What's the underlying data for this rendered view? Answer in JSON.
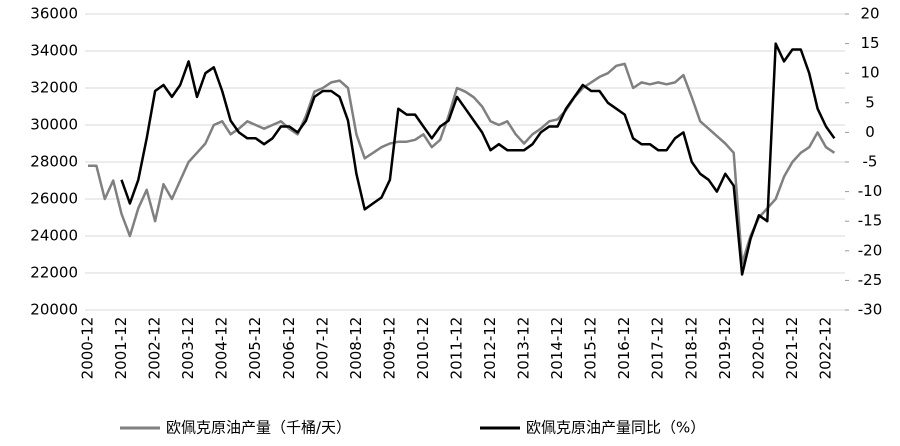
{
  "chart_data": {
    "type": "line",
    "categories": [
      "2000-12",
      null,
      null,
      null,
      "2001-12",
      null,
      null,
      null,
      "2002-12",
      null,
      null,
      null,
      "2003-12",
      null,
      null,
      null,
      "2004-12",
      null,
      null,
      null,
      "2005-12",
      null,
      null,
      null,
      "2006-12",
      null,
      null,
      null,
      "2007-12",
      null,
      null,
      null,
      "2008-12",
      null,
      null,
      null,
      "2009-12",
      null,
      null,
      null,
      "2010-12",
      null,
      null,
      null,
      "2011-12",
      null,
      null,
      null,
      "2012-12",
      null,
      null,
      null,
      "2013-12",
      null,
      null,
      null,
      "2014-12",
      null,
      null,
      null,
      "2015-12",
      null,
      null,
      null,
      "2016-12",
      null,
      null,
      null,
      "2017-12",
      null,
      null,
      null,
      "2018-12",
      null,
      null,
      null,
      "2019-12",
      null,
      null,
      null,
      "2020-12",
      null,
      null,
      null,
      "2021-12",
      null,
      null,
      null,
      "2022-12",
      null
    ],
    "series": [
      {
        "name": "欧佩克原油产量（千桶/天）",
        "color": "#808080",
        "values": [
          27800,
          27800,
          26000,
          27000,
          25200,
          24000,
          25500,
          26500,
          24800,
          26800,
          26000,
          27000,
          28000,
          28500,
          29000,
          30000,
          30200,
          29500,
          29800,
          30200,
          30000,
          29800,
          30000,
          30200,
          29800,
          29500,
          30500,
          31800,
          32000,
          32300,
          32400,
          32000,
          29500,
          28200,
          28500,
          28800,
          29000,
          29100,
          29100,
          29200,
          29500,
          28800,
          29200,
          30500,
          32000,
          31800,
          31500,
          31000,
          30200,
          30000,
          30200,
          29500,
          29000,
          29500,
          29800,
          30200,
          30300,
          30800,
          31500,
          32000,
          32300,
          32600,
          32800,
          33200,
          33300,
          32000,
          32300,
          32200,
          32300,
          32200,
          32300,
          32700,
          31500,
          30200,
          29800,
          29400,
          29000,
          28500,
          22500,
          24000,
          25000,
          25500,
          26000,
          27200,
          28000,
          28500,
          28800,
          29600,
          28800,
          28500
        ]
      },
      {
        "name": "欧佩克原油产量同比（%）",
        "color": "#000000",
        "axis": "y2",
        "values": [
          null,
          null,
          null,
          null,
          -8,
          -12,
          -8,
          -1,
          7,
          8,
          6,
          8,
          12,
          6,
          10,
          11,
          7,
          2,
          0,
          -1,
          -1,
          -2,
          -1,
          1,
          1,
          0,
          2,
          6,
          7,
          7,
          6,
          2,
          -7,
          -13,
          -12,
          -11,
          -8,
          4,
          3,
          3,
          1,
          -1,
          1,
          2,
          6,
          4,
          2,
          0,
          -3,
          -2,
          -3,
          -3,
          -3,
          -2,
          0,
          1,
          1,
          4,
          6,
          8,
          7,
          7,
          5,
          4,
          3,
          -1,
          -2,
          -2,
          -3,
          -3,
          -1,
          0,
          -5,
          -7,
          -8,
          -10,
          -7,
          -9,
          -24,
          -18,
          -14,
          -15,
          15,
          12,
          14,
          14,
          10,
          4,
          1,
          -1
        ]
      }
    ],
    "ylim": [
      20000,
      36000
    ],
    "yticks": [
      20000,
      22000,
      24000,
      26000,
      28000,
      30000,
      32000,
      34000,
      36000
    ],
    "y2lim": [
      -30,
      20
    ],
    "y2ticks": [
      -30,
      -25,
      -20,
      -15,
      -10,
      -5,
      0,
      5,
      10,
      15,
      20
    ],
    "grid": true
  }
}
